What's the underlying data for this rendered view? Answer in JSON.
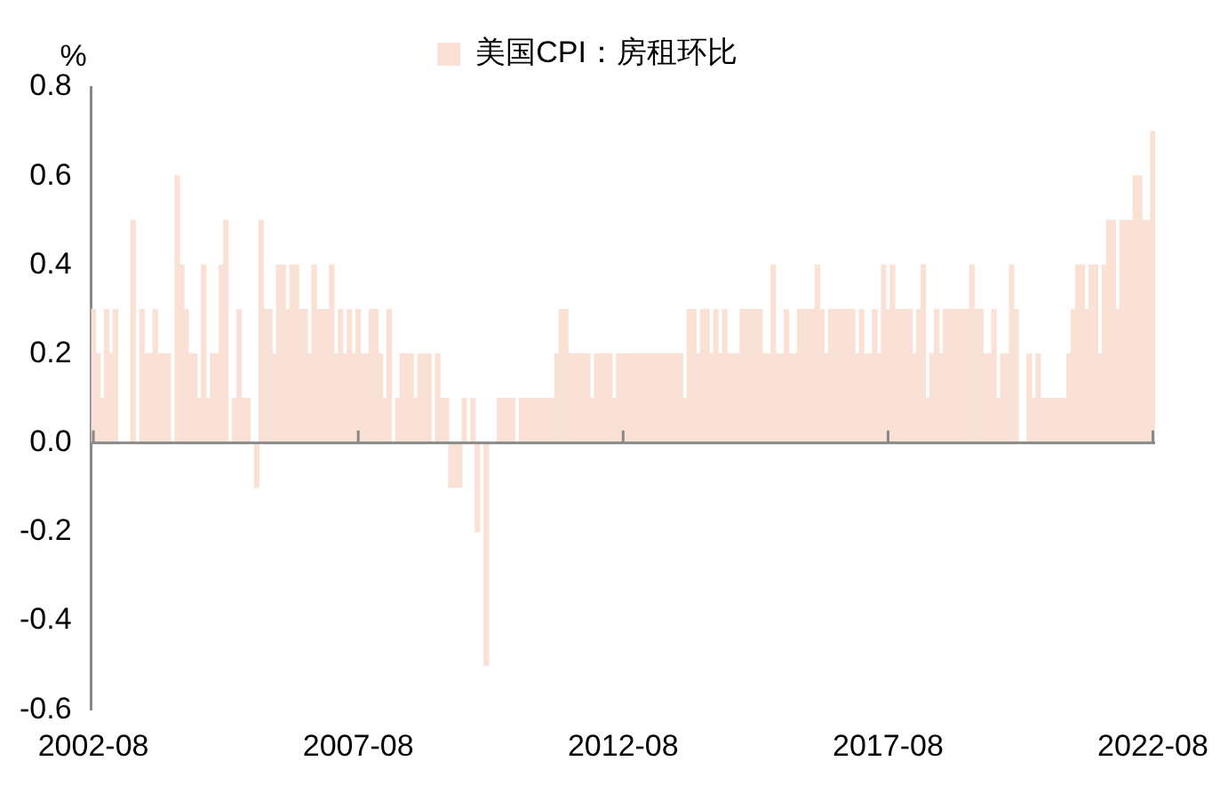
{
  "chart_data": {
    "type": "bar",
    "ylabel": "%",
    "legend": "top",
    "categories": [
      "2002-08",
      null,
      null,
      null,
      null,
      null,
      null,
      null,
      null,
      null,
      null,
      null,
      null,
      null,
      null,
      null,
      null,
      null,
      null,
      null,
      null,
      null,
      null,
      null,
      null,
      null,
      null,
      null,
      null,
      null,
      null,
      null,
      null,
      null,
      null,
      null,
      null,
      null,
      null,
      null,
      null,
      null,
      null,
      null,
      null,
      null,
      null,
      null,
      null,
      null,
      null,
      null,
      null,
      null,
      null,
      null,
      null,
      null,
      null,
      null,
      "2007-08",
      null,
      null,
      null,
      null,
      null,
      null,
      null,
      null,
      null,
      null,
      null,
      null,
      null,
      null,
      null,
      null,
      null,
      null,
      null,
      null,
      null,
      null,
      null,
      null,
      null,
      null,
      null,
      null,
      null,
      null,
      null,
      null,
      null,
      null,
      null,
      null,
      null,
      null,
      null,
      null,
      null,
      null,
      null,
      null,
      null,
      null,
      null,
      null,
      null,
      null,
      null,
      null,
      null,
      null,
      null,
      null,
      null,
      null,
      null,
      "2012-08",
      null,
      null,
      null,
      null,
      null,
      null,
      null,
      null,
      null,
      null,
      null,
      null,
      null,
      null,
      null,
      null,
      null,
      null,
      null,
      null,
      null,
      null,
      null,
      null,
      null,
      null,
      null,
      null,
      null,
      null,
      null,
      null,
      null,
      null,
      null,
      null,
      null,
      null,
      null,
      null,
      null,
      null,
      null,
      null,
      null,
      null,
      null,
      null,
      null,
      null,
      null,
      null,
      null,
      null,
      null,
      null,
      null,
      null,
      null,
      "2017-08",
      null,
      null,
      null,
      null,
      null,
      null,
      null,
      null,
      null,
      null,
      null,
      null,
      null,
      null,
      null,
      null,
      null,
      null,
      null,
      null,
      null,
      null,
      null,
      null,
      null,
      null,
      null,
      null,
      null,
      null,
      null,
      null,
      null,
      null,
      null,
      null,
      null,
      null,
      null,
      null,
      null,
      null,
      null,
      null,
      null,
      null,
      null,
      null,
      null,
      null,
      null,
      null,
      null,
      null,
      null,
      null,
      null,
      null,
      null,
      "2022-08"
    ],
    "series": [
      {
        "name": "美国CPI：房租环比",
        "color": "#f9e2d5",
        "values": [
          0.3,
          0.2,
          0.1,
          0.3,
          0.2,
          0.3,
          0,
          0,
          0,
          0.5,
          0,
          0.3,
          0.2,
          0.2,
          0.3,
          0.2,
          0.2,
          0.2,
          0,
          0.6,
          0.4,
          0.3,
          0.2,
          0.2,
          0.1,
          0.4,
          0.1,
          0.2,
          0.2,
          0.4,
          0.5,
          0,
          0.1,
          0.3,
          0.1,
          0.1,
          0,
          -0.1,
          0.5,
          0.3,
          0.3,
          0.2,
          0.4,
          0.4,
          0.3,
          0.4,
          0.4,
          0.3,
          0.3,
          0.2,
          0.4,
          0.3,
          0.3,
          0.3,
          0.4,
          0.2,
          0.3,
          0.2,
          0.3,
          0.2,
          0.3,
          0.2,
          0.2,
          0.3,
          0.3,
          0.2,
          0.1,
          0.3,
          0,
          0.1,
          0.2,
          0.2,
          0.2,
          0.1,
          0.2,
          0.2,
          0.2,
          0,
          0.2,
          0.1,
          0.1,
          -0.1,
          -0.1,
          -0.1,
          0.1,
          0,
          0.1,
          -0.2,
          0,
          -0.5,
          0,
          0,
          0.1,
          0.1,
          0.1,
          0.1,
          0,
          0.1,
          0.1,
          0.1,
          0.1,
          0.1,
          0.1,
          0.1,
          0.1,
          0.2,
          0.3,
          0.3,
          0.2,
          0.2,
          0.2,
          0.2,
          0.2,
          0.1,
          0.2,
          0.2,
          0.2,
          0.2,
          0.1,
          0.2,
          0.2,
          0.2,
          0.2,
          0.2,
          0.2,
          0.2,
          0.2,
          0.2,
          0.2,
          0.2,
          0.2,
          0.2,
          0.2,
          0.2,
          0.1,
          0.3,
          0.3,
          0.2,
          0.3,
          0.3,
          0.2,
          0.3,
          0.2,
          0.3,
          0.2,
          0.2,
          0.2,
          0.3,
          0.3,
          0.3,
          0.3,
          0.3,
          0.2,
          0.2,
          0.4,
          0.2,
          0.2,
          0.3,
          0.2,
          0.2,
          0.3,
          0.3,
          0.3,
          0.3,
          0.4,
          0.3,
          0.2,
          0.3,
          0.3,
          0.3,
          0.3,
          0.3,
          0.3,
          0.2,
          0.3,
          0.2,
          0.2,
          0.3,
          0.2,
          0.4,
          0.3,
          0.4,
          0.3,
          0.3,
          0.3,
          0.3,
          0.2,
          0.3,
          0.4,
          0.1,
          0.2,
          0.3,
          0.2,
          0.3,
          0.3,
          0.3,
          0.3,
          0.3,
          0.3,
          0.4,
          0.3,
          0.3,
          0.2,
          0.2,
          0.3,
          0.1,
          0.2,
          0.2,
          0.4,
          0.3,
          0,
          0,
          0.2,
          0.1,
          0.2,
          0.1,
          0.1,
          0.1,
          0.1,
          0.1,
          0.1,
          0.2,
          0.3,
          0.4,
          0.4,
          0.3,
          0.4,
          0.4,
          0.2,
          0.4,
          0.5,
          0.5,
          0.3,
          0.5,
          0.5,
          0.5,
          0.6,
          0.6,
          0.5,
          0.5,
          0.7
        ]
      }
    ],
    "ylim": [
      -0.6,
      0.8
    ],
    "yticks": [
      -0.6,
      -0.4,
      -0.2,
      {
        "value": 0,
        "label": "0.0"
      },
      0.2,
      0.4,
      0.6,
      0.8
    ]
  }
}
